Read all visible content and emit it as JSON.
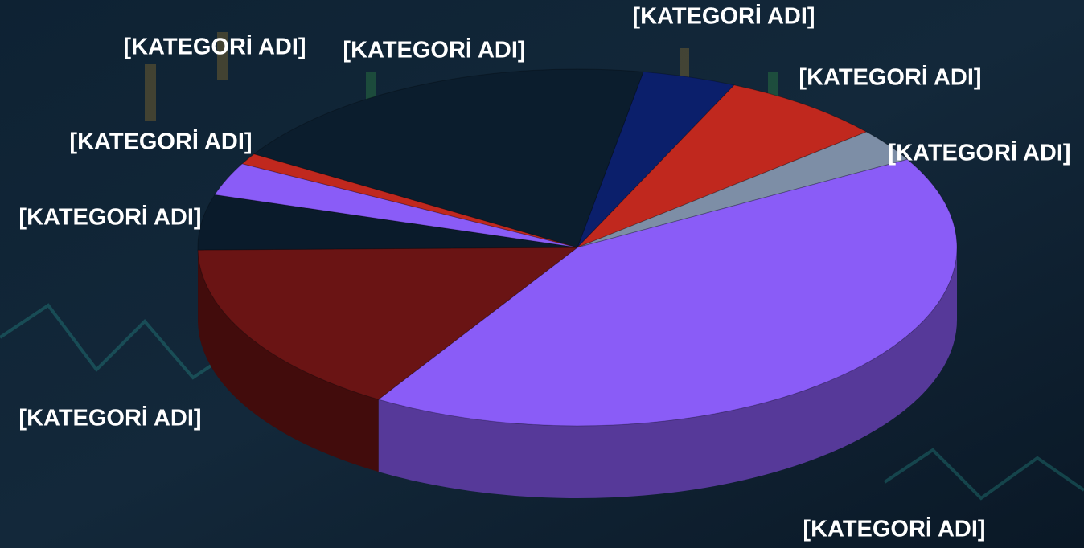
{
  "chart_data": {
    "type": "pie3d",
    "categories": [
      "[KATEGORİ ADI]",
      "[KATEGORİ ADI]",
      "[KATEGORİ ADI]",
      "[KATEGORİ ADI]",
      "[KATEGORİ ADI]",
      "[KATEGORİ ADI]",
      "[KATEGORİ ADI]",
      "[KATEGORİ ADI]",
      "[KATEGORİ ADI]"
    ],
    "values": [
      4,
      7,
      3,
      42,
      16,
      5,
      3,
      1,
      19
    ],
    "colors": [
      "#0b1f6b",
      "#c0281e",
      "#7d8ea6",
      "#8a5cf7",
      "#6a1414",
      "#0a1b2b",
      "#8a5cf7",
      "#c0281e",
      "#0b1d2d"
    ]
  }
}
